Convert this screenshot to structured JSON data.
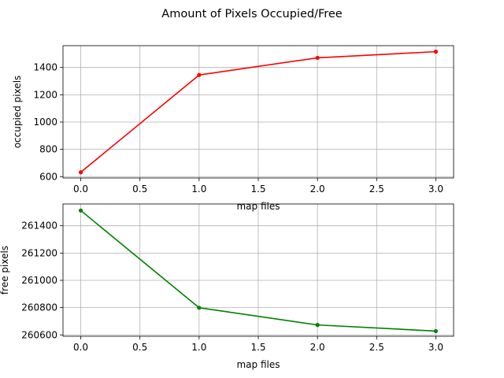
{
  "figure": {
    "title": "Amount of Pixels Occupied/Free"
  },
  "chart_data": [
    {
      "type": "line",
      "title": "",
      "xlabel": "map files",
      "ylabel": "occupied pixels",
      "x": [
        0.0,
        1.0,
        2.0,
        3.0
      ],
      "series": [
        {
          "values": [
            632,
            1345,
            1471,
            1516
          ],
          "color": "#ff0000",
          "marker": "dot"
        }
      ],
      "xlim": [
        -0.15,
        3.15
      ],
      "ylim": [
        590,
        1560
      ],
      "xticks": [
        0.0,
        0.5,
        1.0,
        1.5,
        2.0,
        2.5,
        3.0
      ],
      "xtick_labels": [
        "0.0",
        "0.5",
        "1.0",
        "1.5",
        "2.0",
        "2.5",
        "3.0"
      ],
      "yticks": [
        600,
        800,
        1000,
        1200,
        1400
      ],
      "ytick_labels": [
        "600",
        "800",
        "1000",
        "1200",
        "1400"
      ],
      "grid": true,
      "legend": "none"
    },
    {
      "type": "line",
      "title": "",
      "xlabel": "map files",
      "ylabel": "free pixels",
      "x": [
        0.0,
        1.0,
        2.0,
        3.0
      ],
      "series": [
        {
          "values": [
            261512,
            260799,
            260673,
            260628
          ],
          "color": "#008000",
          "marker": "dot"
        }
      ],
      "xlim": [
        -0.15,
        3.15
      ],
      "ylim": [
        260590,
        261560
      ],
      "xticks": [
        0.0,
        0.5,
        1.0,
        1.5,
        2.0,
        2.5,
        3.0
      ],
      "xtick_labels": [
        "0.0",
        "0.5",
        "1.0",
        "1.5",
        "2.0",
        "2.5",
        "3.0"
      ],
      "yticks": [
        260600,
        260800,
        261000,
        261200,
        261400
      ],
      "ytick_labels": [
        "260600",
        "260800",
        "261000",
        "261200",
        "261400"
      ],
      "grid": true,
      "legend": "none"
    }
  ]
}
